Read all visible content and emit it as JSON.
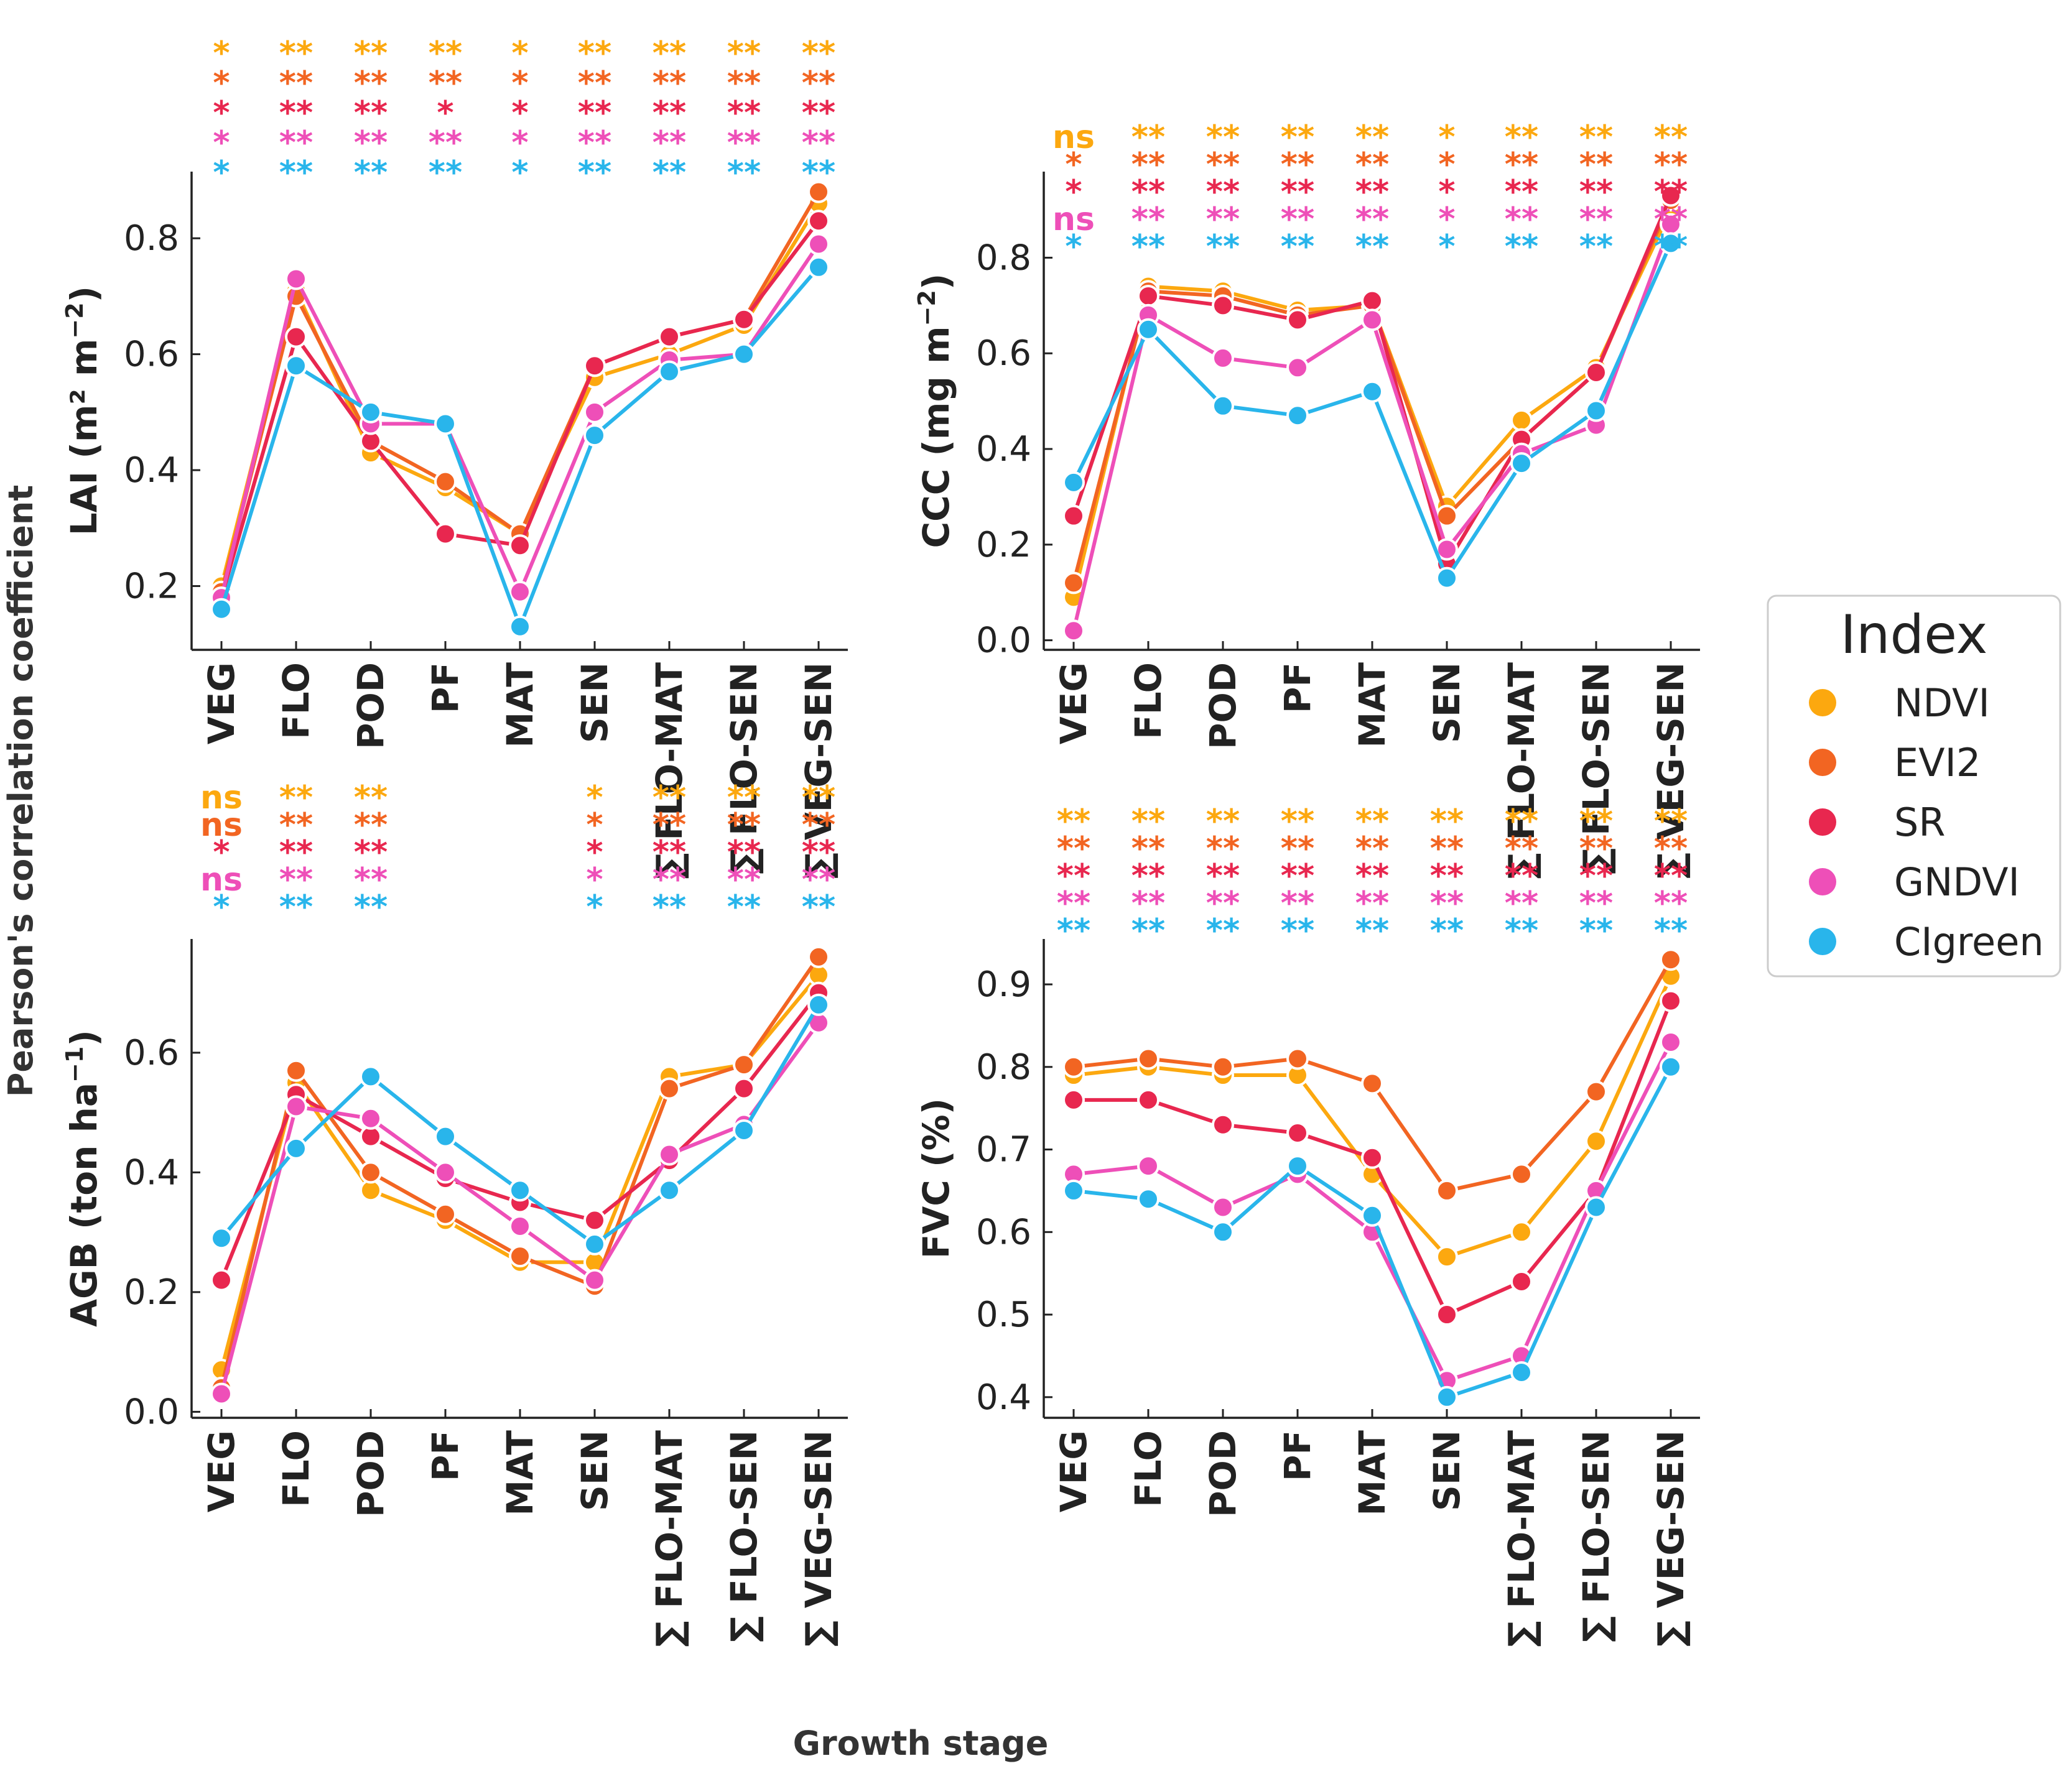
{
  "chart_data": {
    "type": "line",
    "supxlabel": "Growth stage",
    "supylabel": "Pearson's correlation coefficient",
    "categories": [
      "VEG",
      "FLO",
      "POD",
      "PF",
      "MAT",
      "SEN",
      "∑ FLO-MAT",
      "∑ FLO-SEN",
      "∑ VEG-SEN"
    ],
    "legend": {
      "title": "Index",
      "placement": "right",
      "entries": [
        {
          "name": "NDVI",
          "color": "#FCA80F"
        },
        {
          "name": "EVI2",
          "color": "#F26522"
        },
        {
          "name": "SR",
          "color": "#E8274F"
        },
        {
          "name": "GNDVI",
          "color": "#EE4FB8"
        },
        {
          "name": "CIgreen",
          "color": "#29B5EB"
        }
      ]
    },
    "panels": [
      {
        "id": "lai",
        "ylabel": "LAI (m² m",
        "ylabel_sup": "−2",
        "ylabel_tail": ")",
        "ylim": [
          0.09,
          0.915
        ],
        "yticks": [
          0.2,
          0.4,
          0.6,
          0.8
        ],
        "ytick_labels": [
          "0.2",
          "0.4",
          "0.6",
          "0.8"
        ],
        "series": [
          {
            "name": "NDVI",
            "values": [
              0.2,
              0.71,
              0.43,
              0.37,
              0.29,
              0.56,
              0.6,
              0.65,
              0.86
            ]
          },
          {
            "name": "EVI2",
            "values": [
              0.19,
              0.7,
              0.45,
              0.38,
              0.29,
              0.58,
              0.63,
              0.66,
              0.88
            ]
          },
          {
            "name": "SR",
            "values": [
              0.18,
              0.63,
              0.45,
              0.29,
              0.27,
              0.58,
              0.63,
              0.66,
              0.83
            ]
          },
          {
            "name": "GNDVI",
            "values": [
              0.18,
              0.73,
              0.48,
              0.48,
              0.19,
              0.5,
              0.59,
              0.6,
              0.79
            ]
          },
          {
            "name": "CIgreen",
            "values": [
              0.16,
              0.58,
              0.5,
              0.48,
              0.13,
              0.46,
              0.57,
              0.6,
              0.75
            ]
          }
        ],
        "significance": [
          [
            "*",
            "*",
            "*",
            "*",
            "*"
          ],
          [
            "**",
            "**",
            "**",
            "**",
            "**"
          ],
          [
            "**",
            "**",
            "**",
            "**",
            "**"
          ],
          [
            "**",
            "**",
            "*",
            "**",
            "**"
          ],
          [
            "*",
            "*",
            "*",
            "*",
            "*"
          ],
          [
            "**",
            "**",
            "**",
            "**",
            "**"
          ],
          [
            "**",
            "**",
            "**",
            "**",
            "**"
          ],
          [
            "**",
            "**",
            "**",
            "**",
            "**"
          ],
          [
            "**",
            "**",
            "**",
            "**",
            "**"
          ]
        ]
      },
      {
        "id": "ccc",
        "ylabel": "CCC (mg m",
        "ylabel_sup": "−2",
        "ylabel_tail": ")",
        "ylim": [
          -0.02,
          0.98
        ],
        "yticks": [
          0.0,
          0.2,
          0.4,
          0.6,
          0.8
        ],
        "ytick_labels": [
          "0.0",
          "0.2",
          "0.4",
          "0.6",
          "0.8"
        ],
        "series": [
          {
            "name": "NDVI",
            "values": [
              0.09,
              0.74,
              0.73,
              0.69,
              0.7,
              0.28,
              0.46,
              0.57,
              0.9
            ]
          },
          {
            "name": "EVI2",
            "values": [
              0.12,
              0.73,
              0.72,
              0.68,
              0.7,
              0.26,
              0.42,
              0.56,
              0.92
            ]
          },
          {
            "name": "SR",
            "values": [
              0.26,
              0.72,
              0.7,
              0.67,
              0.71,
              0.16,
              0.42,
              0.56,
              0.93
            ]
          },
          {
            "name": "GNDVI",
            "values": [
              0.02,
              0.68,
              0.59,
              0.57,
              0.67,
              0.19,
              0.39,
              0.45,
              0.87
            ]
          },
          {
            "name": "CIgreen",
            "values": [
              0.33,
              0.65,
              0.49,
              0.47,
              0.52,
              0.13,
              0.37,
              0.48,
              0.83
            ]
          }
        ],
        "significance": [
          [
            "ns",
            "*",
            "*",
            "ns",
            "*"
          ],
          [
            "**",
            "**",
            "**",
            "**",
            "**"
          ],
          [
            "**",
            "**",
            "**",
            "**",
            "**"
          ],
          [
            "**",
            "**",
            "**",
            "**",
            "**"
          ],
          [
            "**",
            "**",
            "**",
            "**",
            "**"
          ],
          [
            "*",
            "*",
            "*",
            "*",
            "*"
          ],
          [
            "**",
            "**",
            "**",
            "**",
            "**"
          ],
          [
            "**",
            "**",
            "**",
            "**",
            "**"
          ],
          [
            "**",
            "**",
            "**",
            "**",
            "**"
          ]
        ]
      },
      {
        "id": "agb",
        "ylabel": "AGB (ton ha",
        "ylabel_sup": "−1",
        "ylabel_tail": ")",
        "ylim": [
          -0.01,
          0.79
        ],
        "yticks": [
          0.0,
          0.2,
          0.4,
          0.6
        ],
        "ytick_labels": [
          "0.0",
          "0.2",
          "0.4",
          "0.6"
        ],
        "series": [
          {
            "name": "NDVI",
            "values": [
              0.07,
              0.55,
              0.37,
              0.32,
              0.25,
              0.25,
              0.56,
              0.58,
              0.73
            ]
          },
          {
            "name": "EVI2",
            "values": [
              0.04,
              0.57,
              0.4,
              0.33,
              0.26,
              0.21,
              0.54,
              0.58,
              0.76
            ]
          },
          {
            "name": "SR",
            "values": [
              0.22,
              0.53,
              0.46,
              0.39,
              0.35,
              0.32,
              0.42,
              0.54,
              0.7
            ]
          },
          {
            "name": "GNDVI",
            "values": [
              0.03,
              0.51,
              0.49,
              0.4,
              0.31,
              0.22,
              0.43,
              0.48,
              0.65
            ]
          },
          {
            "name": "CIgreen",
            "values": [
              0.29,
              0.44,
              0.56,
              0.46,
              0.37,
              0.28,
              0.37,
              0.47,
              0.68
            ]
          }
        ],
        "significance": [
          [
            "ns",
            "ns",
            "*",
            "ns",
            "*"
          ],
          [
            "**",
            "**",
            "**",
            "**",
            "**"
          ],
          [
            "**",
            "**",
            "**",
            "**",
            "**"
          ],
          [
            "",
            "",
            "",
            "",
            ""
          ],
          [
            "",
            "",
            "",
            "",
            ""
          ],
          [
            "*",
            "*",
            "*",
            "*",
            "*"
          ],
          [
            "**",
            "**",
            "**",
            "**",
            "**"
          ],
          [
            "**",
            "**",
            "**",
            "**",
            "**"
          ],
          [
            "**",
            "**",
            "**",
            "**",
            "**"
          ]
        ]
      },
      {
        "id": "fvc",
        "ylabel": "FVC (%)",
        "ylabel_sup": "",
        "ylabel_tail": "",
        "ylim": [
          0.375,
          0.955
        ],
        "yticks": [
          0.4,
          0.5,
          0.6,
          0.7,
          0.8,
          0.9
        ],
        "ytick_labels": [
          "0.4",
          "0.5",
          "0.6",
          "0.7",
          "0.8",
          "0.9"
        ],
        "series": [
          {
            "name": "NDVI",
            "values": [
              0.79,
              0.8,
              0.79,
              0.79,
              0.67,
              0.57,
              0.6,
              0.71,
              0.91
            ]
          },
          {
            "name": "EVI2",
            "values": [
              0.8,
              0.81,
              0.8,
              0.81,
              0.78,
              0.65,
              0.67,
              0.77,
              0.93
            ]
          },
          {
            "name": "SR",
            "values": [
              0.76,
              0.76,
              0.73,
              0.72,
              0.69,
              0.5,
              0.54,
              0.65,
              0.88
            ]
          },
          {
            "name": "GNDVI",
            "values": [
              0.67,
              0.68,
              0.63,
              0.67,
              0.6,
              0.42,
              0.45,
              0.65,
              0.83
            ]
          },
          {
            "name": "CIgreen",
            "values": [
              0.65,
              0.64,
              0.6,
              0.68,
              0.62,
              0.4,
              0.43,
              0.63,
              0.8
            ]
          }
        ],
        "significance": [
          [
            "**",
            "**",
            "**",
            "**",
            "**"
          ],
          [
            "**",
            "**",
            "**",
            "**",
            "**"
          ],
          [
            "**",
            "**",
            "**",
            "**",
            "**"
          ],
          [
            "**",
            "**",
            "**",
            "**",
            "**"
          ],
          [
            "**",
            "**",
            "**",
            "**",
            "**"
          ],
          [
            "**",
            "**",
            "**",
            "**",
            "**"
          ],
          [
            "**",
            "**",
            "**",
            "**",
            "**"
          ],
          [
            "**",
            "**",
            "**",
            "**",
            "**"
          ],
          [
            "**",
            "**",
            "**",
            "**",
            "**"
          ]
        ]
      }
    ]
  }
}
